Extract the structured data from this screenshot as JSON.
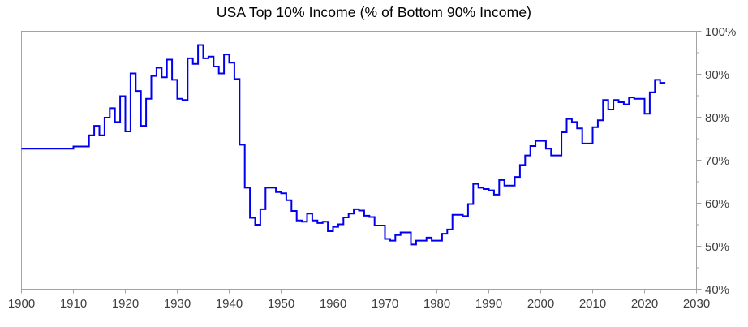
{
  "chart_data": {
    "type": "line",
    "title": "USA Top 10% Income (% of Bottom 90% Income)",
    "line_style": "step-after",
    "line_color": "#0000ee",
    "axis_color": "#a3a3a3",
    "label_color": "#3d3d3d",
    "xlim": [
      1900,
      2030
    ],
    "ylim": [
      40,
      100
    ],
    "x_ticks": [
      1900,
      1910,
      1920,
      1930,
      1940,
      1950,
      1960,
      1970,
      1980,
      1990,
      2000,
      2010,
      2020,
      2030
    ],
    "y_major_ticks": [
      40,
      50,
      60,
      70,
      80,
      90,
      100
    ],
    "y_minor_tick_step": 5,
    "y_tick_suffix": "%",
    "grid": "off",
    "legend": "none",
    "years": [
      1900,
      1901,
      1902,
      1903,
      1904,
      1905,
      1906,
      1907,
      1908,
      1909,
      1910,
      1911,
      1912,
      1913,
      1914,
      1915,
      1916,
      1917,
      1918,
      1919,
      1920,
      1921,
      1922,
      1923,
      1924,
      1925,
      1926,
      1927,
      1928,
      1929,
      1930,
      1931,
      1932,
      1933,
      1934,
      1935,
      1936,
      1937,
      1938,
      1939,
      1940,
      1941,
      1942,
      1943,
      1944,
      1945,
      1946,
      1947,
      1948,
      1949,
      1950,
      1951,
      1952,
      1953,
      1954,
      1955,
      1956,
      1957,
      1958,
      1959,
      1960,
      1961,
      1962,
      1963,
      1964,
      1965,
      1966,
      1967,
      1968,
      1969,
      1970,
      1971,
      1972,
      1973,
      1974,
      1975,
      1976,
      1977,
      1978,
      1979,
      1980,
      1981,
      1982,
      1983,
      1984,
      1985,
      1986,
      1987,
      1988,
      1989,
      1990,
      1991,
      1992,
      1993,
      1994,
      1995,
      1996,
      1997,
      1998,
      1999,
      2000,
      2001,
      2002,
      2003,
      2004,
      2005,
      2006,
      2007,
      2008,
      2009,
      2010,
      2011,
      2012,
      2013,
      2014,
      2015,
      2016,
      2017,
      2018,
      2019,
      2020,
      2021,
      2022,
      2023
    ],
    "values": [
      72.7,
      72.7,
      72.7,
      72.7,
      72.7,
      72.7,
      72.7,
      72.7,
      72.7,
      72.7,
      73.2,
      73.2,
      73.2,
      75.8,
      78.0,
      75.8,
      79.9,
      82.1,
      78.9,
      84.9,
      76.7,
      90.2,
      86.1,
      78.0,
      84.3,
      89.6,
      91.5,
      89.3,
      93.4,
      88.7,
      84.3,
      84.0,
      93.7,
      92.4,
      96.8,
      93.7,
      94.1,
      91.8,
      90.2,
      94.6,
      92.7,
      88.9,
      73.6,
      63.6,
      56.6,
      55.0,
      58.6,
      63.6,
      63.6,
      62.6,
      62.3,
      60.7,
      58.2,
      56.0,
      55.7,
      57.6,
      56.0,
      55.4,
      55.7,
      53.5,
      54.5,
      55.1,
      56.7,
      57.6,
      58.6,
      58.3,
      57.1,
      56.8,
      54.8,
      54.8,
      51.7,
      51.3,
      52.6,
      53.2,
      53.2,
      50.4,
      51.3,
      51.3,
      52.0,
      51.3,
      51.3,
      52.9,
      53.9,
      57.3,
      57.3,
      57.0,
      59.8,
      64.5,
      63.6,
      63.3,
      63.0,
      62.0,
      65.4,
      64.1,
      64.1,
      66.1,
      68.9,
      71.1,
      73.3,
      74.5,
      74.5,
      72.7,
      71.1,
      71.1,
      76.5,
      79.6,
      78.9,
      77.4,
      73.9,
      73.9,
      77.7,
      79.3,
      84.0,
      81.8,
      84.0,
      83.5,
      83.0,
      84.6,
      84.3,
      84.3,
      80.8,
      85.8,
      88.7,
      88.0
    ]
  }
}
